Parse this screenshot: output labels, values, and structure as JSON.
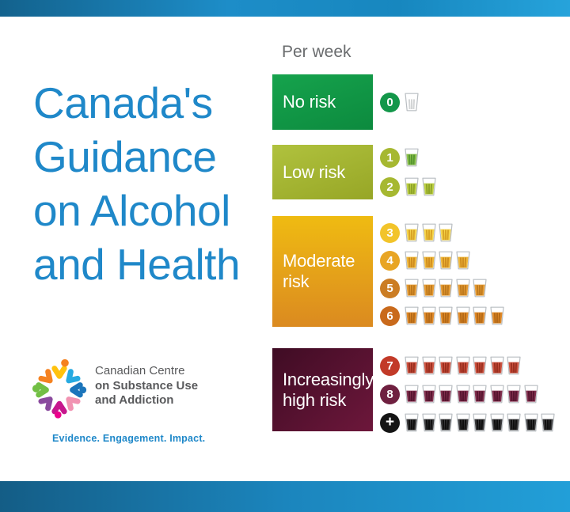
{
  "header": {
    "per_week_label": "Per week"
  },
  "title": {
    "lines": [
      "Canada's",
      "Guidance",
      "on Alcohol",
      "and Health"
    ]
  },
  "logo": {
    "name_line1": "Canadian Centre",
    "name_line2": "on Substance Use",
    "name_line3": "and Addiction",
    "tagline": "Evidence. Engagement. Impact."
  },
  "colors": {
    "accent_blue": "#1f88c9",
    "text_gray": "#6a6c6e",
    "bar_left": "#13628d",
    "bar_right": "#26a3db"
  },
  "groups": [
    {
      "label": "No risk",
      "box_color_top": "#16a34d",
      "box_color_bottom": "#0c8a3e",
      "rows": [
        {
          "badge": "0",
          "badge_color": "#13974a",
          "count": 1,
          "empty": true,
          "fill": "#ffffff",
          "stripe": "#d3d5d6"
        }
      ]
    },
    {
      "label": "Low risk",
      "box_color_top": "#b0c23e",
      "box_color_bottom": "#97a626",
      "rows": [
        {
          "badge": "1",
          "badge_color": "#a6b831",
          "count": 1,
          "empty": false,
          "fill": "#8cc04c",
          "stripe": "#57982f"
        },
        {
          "badge": "2",
          "badge_color": "#a6b831",
          "count": 2,
          "empty": false,
          "fill": "#bccf42",
          "stripe": "#8fa528"
        }
      ]
    },
    {
      "label": "Moderate risk",
      "box_color_top": "#efbb12",
      "box_color_bottom": "#db8a20",
      "rows": [
        {
          "badge": "3",
          "badge_color": "#f2c42a",
          "count": 3,
          "empty": false,
          "fill": "#f5d44a",
          "stripe": "#d9a425"
        },
        {
          "badge": "4",
          "badge_color": "#e8a524",
          "count": 4,
          "empty": false,
          "fill": "#efb739",
          "stripe": "#cf8d20"
        },
        {
          "badge": "5",
          "badge_color": "#cb7d24",
          "count": 5,
          "empty": false,
          "fill": "#e59b33",
          "stripe": "#bf7a1e"
        },
        {
          "badge": "6",
          "badge_color": "#c96a1c",
          "count": 6,
          "empty": false,
          "fill": "#e08a28",
          "stripe": "#b56a17"
        }
      ]
    },
    {
      "label": "Increasingly high risk",
      "box_color_top": "#3f0c24",
      "box_color_bottom": "#6d173b",
      "rows": [
        {
          "badge": "7",
          "badge_color": "#c23a28",
          "count": 7,
          "empty": false,
          "fill": "#cd5340",
          "stripe": "#9c2f1f"
        },
        {
          "badge": "8",
          "badge_color": "#6f2040",
          "count": 8,
          "empty": false,
          "fill": "#82304e",
          "stripe": "#57152f"
        },
        {
          "badge": "+",
          "badge_color": "#141414",
          "count": 9,
          "empty": false,
          "fill": "#3a3a3c",
          "stripe": "#0e0e0e"
        }
      ]
    }
  ]
}
